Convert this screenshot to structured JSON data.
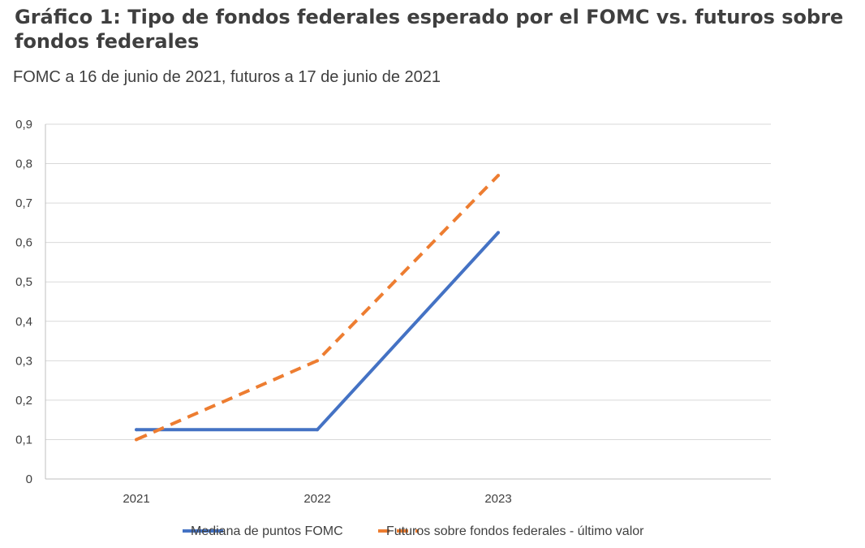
{
  "title": "Gráfico 1: Tipo de fondos federales esperado por el FOMC vs. futuros sobre fondos federales",
  "subtitle": "FOMC a 16 de junio de 2021, futuros a 17 de junio de 2021",
  "chart_data": {
    "type": "line",
    "categories": [
      "2021",
      "2022",
      "2023"
    ],
    "ylim": [
      0,
      0.9
    ],
    "yticks": [
      "0",
      "0,1",
      "0,2",
      "0,3",
      "0,4",
      "0,5",
      "0,6",
      "0,7",
      "0,8",
      "0,9"
    ],
    "grid": true,
    "legend_position": "bottom",
    "series": [
      {
        "name": "Mediana de puntos FOMC",
        "values": [
          0.125,
          0.125,
          0.625
        ],
        "color": "#4472c4",
        "dash": "solid"
      },
      {
        "name": "Futuros sobre fondos federales - último valor",
        "values": [
          0.1,
          0.3,
          0.77
        ],
        "color": "#ed7d31",
        "dash": "dashed"
      }
    ]
  }
}
